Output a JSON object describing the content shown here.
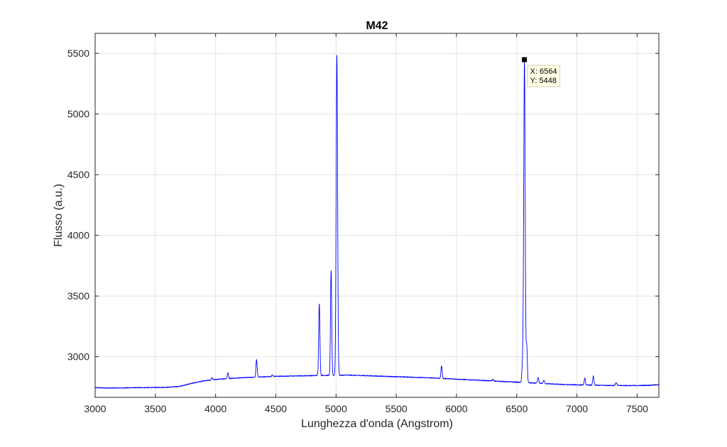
{
  "chart_data": {
    "type": "line",
    "title": "M42",
    "xlabel": "Lunghezza d'onda (Angstrom)",
    "ylabel": "Flusso (a.u.)",
    "xlim": [
      3000,
      7680
    ],
    "ylim": [
      2665,
      5665
    ],
    "grid": true,
    "xticks": [
      3000,
      3500,
      4000,
      4500,
      5000,
      5500,
      6000,
      6500,
      7000,
      7500
    ],
    "xtick_labels": [
      "3000",
      "3500",
      "4000",
      "4500",
      "5000",
      "5500",
      "6000",
      "6500",
      "7000",
      "7500"
    ],
    "yticks": [
      3000,
      3500,
      4000,
      4500,
      5000,
      5500
    ],
    "ytick_labels": [
      "3000",
      "3500",
      "4000",
      "4500",
      "5000",
      "5500"
    ],
    "line_color": "#0000ff",
    "series": [
      {
        "x": [
          3000,
          3100,
          3200,
          3300,
          3400,
          3500,
          3600,
          3700,
          3800,
          3900,
          4000,
          4100,
          4200,
          4300,
          4400,
          4500,
          4600,
          4700,
          4800,
          4900,
          5000,
          5100,
          5200,
          5300,
          5400,
          5500,
          5600,
          5700,
          5800,
          5900,
          6000,
          6100,
          6200,
          6300,
          6400,
          6500,
          6600,
          6700,
          6800,
          6900,
          7000,
          7100,
          7200,
          7300,
          7400,
          7500,
          7600,
          7680
        ],
        "y": [
          2745,
          2742,
          2742,
          2744,
          2745,
          2746,
          2748,
          2755,
          2780,
          2800,
          2812,
          2820,
          2826,
          2830,
          2834,
          2838,
          2840,
          2842,
          2844,
          2846,
          2846,
          2848,
          2845,
          2842,
          2838,
          2835,
          2832,
          2828,
          2825,
          2820,
          2815,
          2810,
          2805,
          2800,
          2795,
          2790,
          2785,
          2780,
          2775,
          2770,
          2768,
          2766,
          2764,
          2763,
          2762,
          2762,
          2764,
          2770
        ]
      }
    ],
    "peaks": [
      {
        "x": 3970,
        "height": 18,
        "width": 5
      },
      {
        "x": 4102,
        "height": 45,
        "width": 5
      },
      {
        "x": 4340,
        "height": 145,
        "width": 5
      },
      {
        "x": 4471,
        "height": 12,
        "width": 5
      },
      {
        "x": 4861,
        "height": 595,
        "width": 5
      },
      {
        "x": 4959,
        "height": 865,
        "width": 5
      },
      {
        "x": 5007,
        "height": 2640,
        "width": 6
      },
      {
        "x": 5876,
        "height": 105,
        "width": 5
      },
      {
        "x": 6300,
        "height": 12,
        "width": 5
      },
      {
        "x": 6548,
        "height": 150,
        "width": 5
      },
      {
        "x": 6564,
        "height": 2658,
        "width": 6
      },
      {
        "x": 6583,
        "height": 308,
        "width": 5
      },
      {
        "x": 6678,
        "height": 45,
        "width": 5
      },
      {
        "x": 6725,
        "height": 25,
        "width": 6
      },
      {
        "x": 7065,
        "height": 55,
        "width": 5
      },
      {
        "x": 7136,
        "height": 75,
        "width": 5
      },
      {
        "x": 7325,
        "height": 22,
        "width": 6
      }
    ],
    "datatip": {
      "x": 6564,
      "y": 5448,
      "x_label": "X: 6564",
      "y_label": "Y: 5448"
    }
  }
}
